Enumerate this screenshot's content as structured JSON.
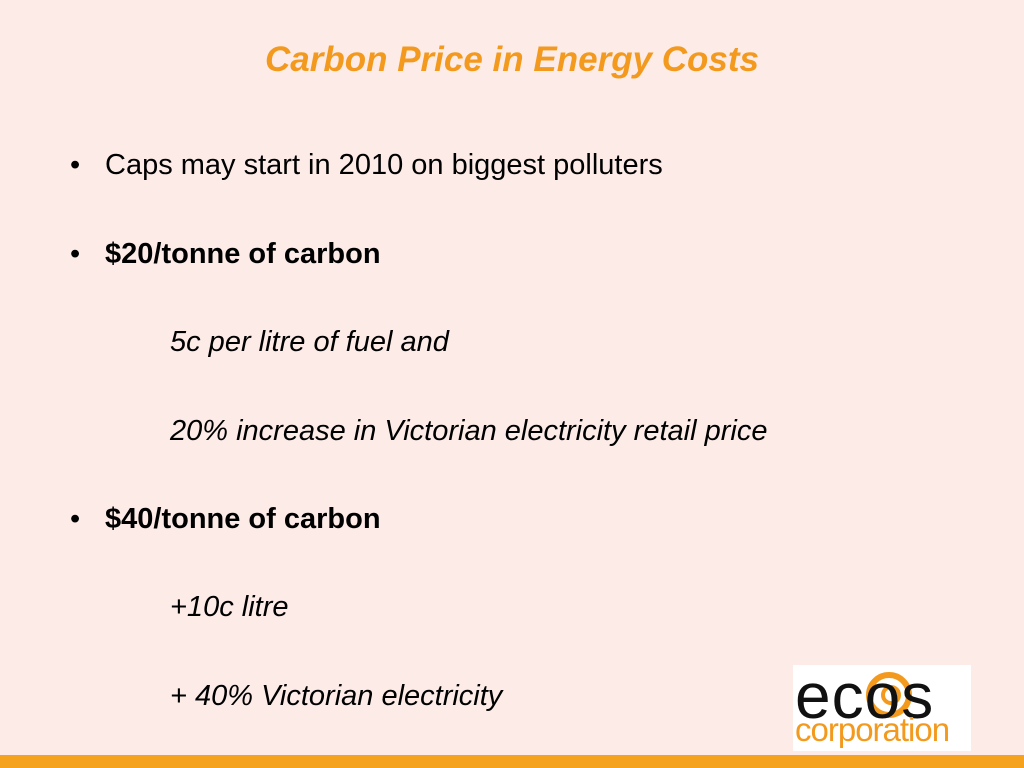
{
  "title": "Carbon Price in Energy Costs",
  "bullets": [
    {
      "text": "Caps may start in 2010 on biggest polluters"
    },
    {
      "text": "$20/tonne of carbon",
      "subitems": [
        "5c per litre of fuel and",
        "20% increase in Victorian electricity retail price"
      ]
    },
    {
      "text": "$40/tonne of carbon",
      "subitems": [
        "+10c litre",
        "+ 40% Victorian electricity"
      ]
    }
  ],
  "logo": {
    "name": "ecos",
    "tagline": "corporation"
  }
}
